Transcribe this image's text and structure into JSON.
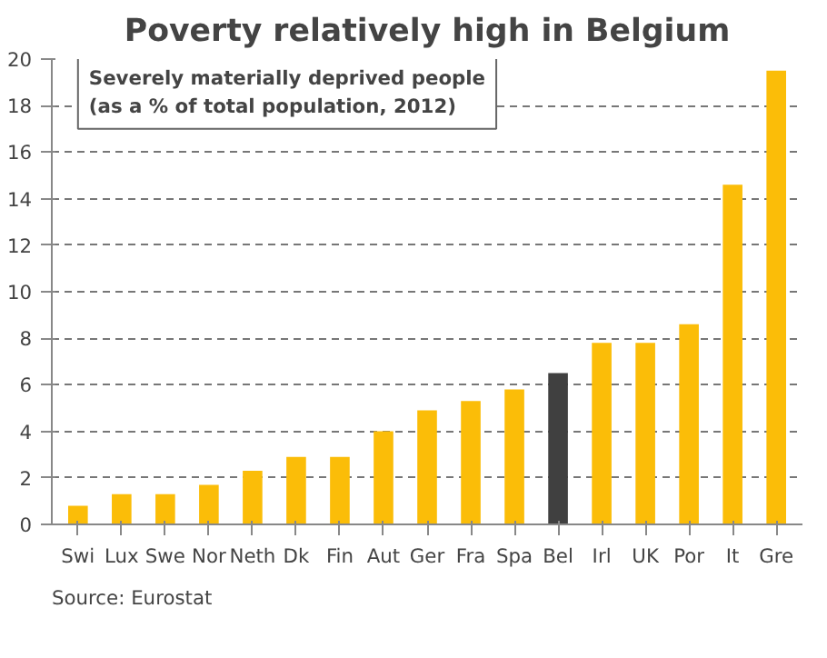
{
  "chart_data": {
    "type": "bar",
    "title": "Poverty relatively high in Belgium",
    "categories": [
      "Swi",
      "Lux",
      "Swe",
      "Nor",
      "Neth",
      "Dk",
      "Fin",
      "Aut",
      "Ger",
      "Fra",
      "Spa",
      "Bel",
      "Irl",
      "UK",
      "Por",
      "It",
      "Gre"
    ],
    "values": [
      0.8,
      1.3,
      1.3,
      1.7,
      2.3,
      2.9,
      2.9,
      4.0,
      4.9,
      5.3,
      5.8,
      6.5,
      7.8,
      7.8,
      8.6,
      14.6,
      19.5
    ],
    "colors": [
      "#fbbd08",
      "#fbbd08",
      "#fbbd08",
      "#fbbd08",
      "#fbbd08",
      "#fbbd08",
      "#fbbd08",
      "#fbbd08",
      "#fbbd08",
      "#fbbd08",
      "#fbbd08",
      "#404040",
      "#fbbd08",
      "#fbbd08",
      "#fbbd08",
      "#fbbd08",
      "#fbbd08"
    ],
    "ylim": [
      0,
      20
    ],
    "yticks": [
      0,
      2,
      4,
      6,
      8,
      10,
      12,
      14,
      16,
      18,
      20
    ],
    "grid": "y",
    "annotations": [
      "Severely materially deprived people\n(as a % of total population, 2012)",
      "Source: Eurostat"
    ]
  }
}
